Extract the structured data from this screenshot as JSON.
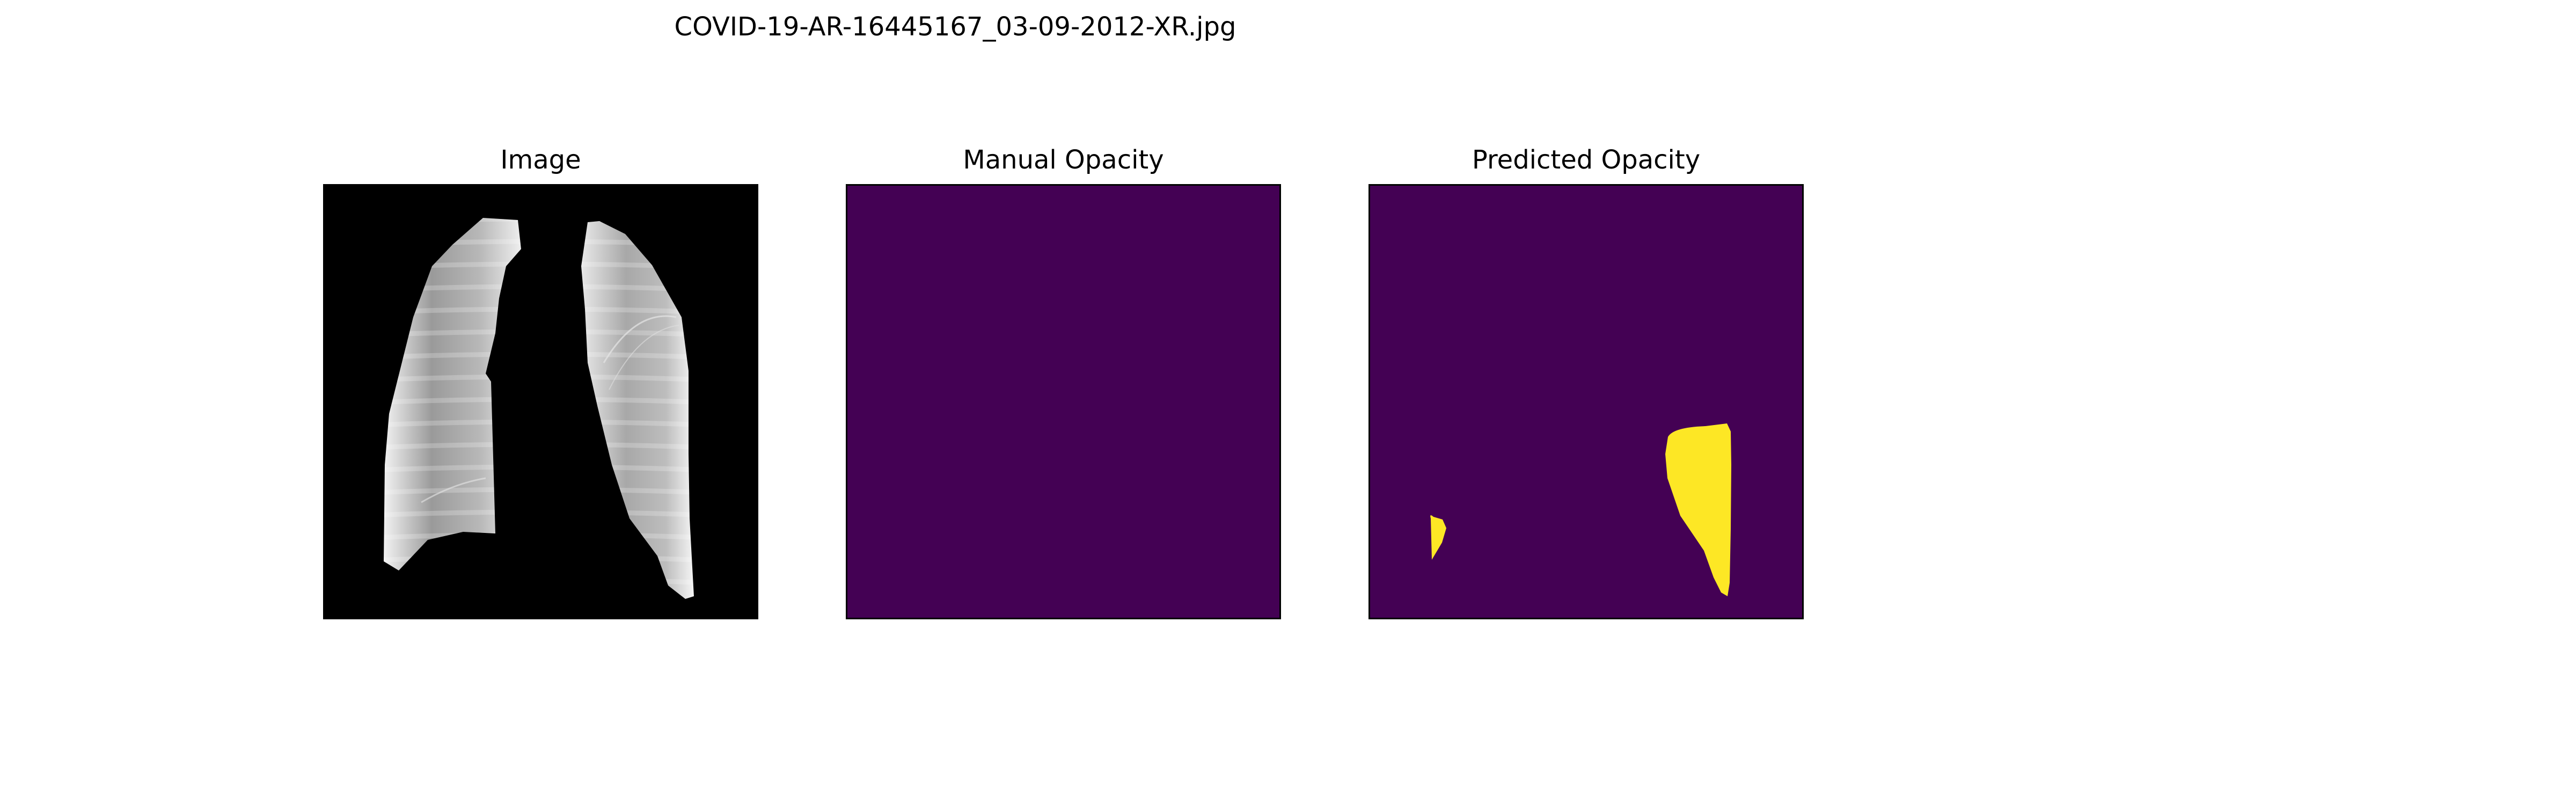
{
  "figure": {
    "title": "COVID-19-AR-16445167_03-09-2012-XR.jpg"
  },
  "panels": [
    {
      "title": "Image",
      "content": "chest-xray-lung-segmentation",
      "colors": {
        "background": "#000000",
        "lung": "#c8c8c8"
      }
    },
    {
      "title": "Manual Opacity",
      "content": "opacity-mask-empty",
      "colors": {
        "background": "#440154"
      }
    },
    {
      "title": "Predicted Opacity",
      "content": "opacity-mask-predicted",
      "colors": {
        "background": "#440154",
        "opacity": "#fde725"
      }
    }
  ]
}
